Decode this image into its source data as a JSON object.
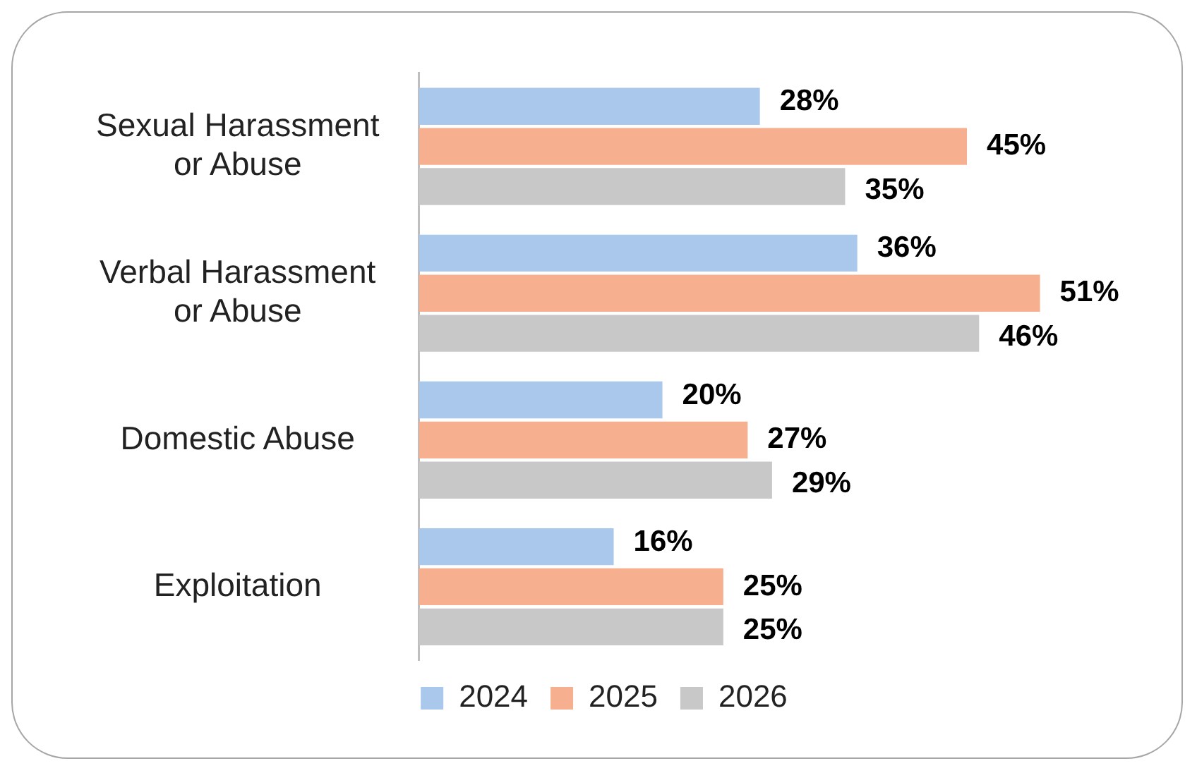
{
  "chart_data": {
    "type": "bar",
    "orientation": "horizontal",
    "categories": [
      "Sexual Harassment or Abuse",
      "Verbal Harassment or Abuse",
      "Domestic Abuse",
      "Exploitation"
    ],
    "series": [
      {
        "name": "2024",
        "color": "#a9c8eb",
        "values": [
          28,
          36,
          20,
          16
        ],
        "value_labels": [
          "28%",
          "36%",
          "20%",
          "16%"
        ]
      },
      {
        "name": "2025",
        "color": "#f6b08f",
        "values": [
          45,
          51,
          27,
          25
        ],
        "value_labels": [
          "45%",
          "51%",
          "27%",
          "25%"
        ]
      },
      {
        "name": "2026",
        "color": "#c8c8c8",
        "values": [
          35,
          46,
          29,
          25
        ],
        "value_labels": [
          "35%",
          "46%",
          "29%",
          "25%"
        ]
      }
    ],
    "legend": "bottom",
    "grid": false
  }
}
